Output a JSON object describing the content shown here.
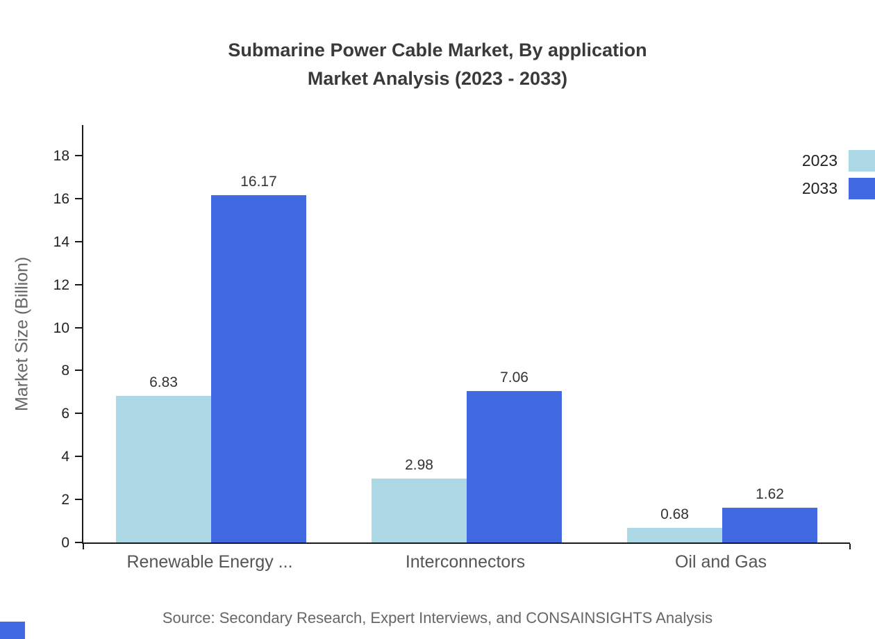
{
  "title": {
    "line1": "Submarine Power Cable Market, By application",
    "line2": "Market Analysis (2023 - 2033)"
  },
  "source": "Source: Secondary Research, Expert Interviews, and CONSAINSIGHTS Analysis",
  "chart_data": {
    "type": "bar",
    "title": "Submarine Power Cable Market, By application Market Analysis (2023 - 2033)",
    "categories": [
      "Renewable Energy ...",
      "Interconnectors",
      "Oil and Gas"
    ],
    "series": [
      {
        "name": "2023",
        "color": "#add8e6",
        "values": [
          6.83,
          2.98,
          0.68
        ]
      },
      {
        "name": "2033",
        "color": "#4169e1",
        "values": [
          16.17,
          7.06,
          1.62
        ]
      }
    ],
    "value_label_decimals": 2,
    "xlabel": "",
    "ylabel": "Market Size (Billion)",
    "ylim": [
      0,
      18
    ],
    "yticks": [
      0,
      2,
      4,
      6,
      8,
      10,
      12,
      14,
      16,
      18
    ],
    "grid": false,
    "legend_position": "top-right",
    "legend_labels": [
      "2023",
      "2033"
    ]
  },
  "colors": {
    "series_2023": "#add8e6",
    "series_2033": "#4169e1",
    "axis": "#1a1a1a",
    "title_text": "#3a3a3a",
    "category_text": "#555555",
    "source_text": "#666666",
    "corner_accent": "#4169e1"
  }
}
